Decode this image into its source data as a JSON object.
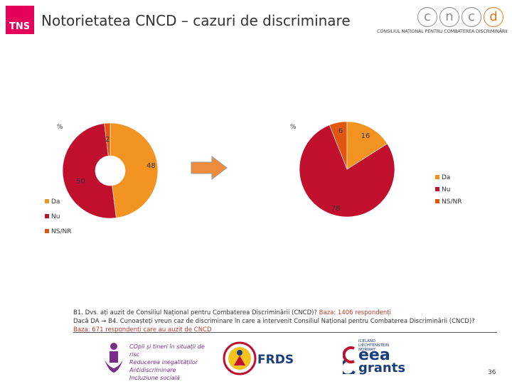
{
  "header": {
    "tns_logo": "TNS",
    "title": "Notorietatea CNCD – cazuri de discriminare",
    "cncd_letters": [
      "c",
      "n",
      "c",
      "d"
    ],
    "cncd_subtitle": "CONSILIUL NAȚIONAL PENTRU COMBATEREA DISCRIMINĂRII"
  },
  "colors": {
    "Da": "#F39422",
    "Nu": "#C0102E",
    "NS/NR": "#E2570F",
    "arrow": "#F08A3C"
  },
  "chart_data": [
    {
      "type": "pie",
      "variant": "donut",
      "unit_label": "%",
      "categories": [
        "Da",
        "Nu",
        "NS/NR"
      ],
      "values": [
        48,
        50,
        2
      ],
      "data_labels": [
        "48",
        "50",
        "2"
      ],
      "legend": [
        "Da",
        "Nu",
        "NS/NR"
      ],
      "legend_position": "bottom-left"
    },
    {
      "type": "pie",
      "unit_label": "%",
      "categories": [
        "Nu",
        "NS/NR",
        "Da"
      ],
      "values": [
        78,
        6,
        16
      ],
      "data_labels": [
        "78",
        "6",
        "16"
      ],
      "legend": [
        "Da",
        "Nu",
        "NS/NR"
      ],
      "legend_position": "right"
    }
  ],
  "question": {
    "line1_text": "B1. Dvs. ați auzit de Consiliul Național pentru Combaterea Discriminării (CNCD)?",
    "line1_base": "Baza: 1406 respondenți",
    "line2_text": "Dacă DA → B4. Cunoașteți vreun caz de discriminare în care a intervenit Consiliul Național pentru Combaterea Discriminării (CNCD)?",
    "line2_base": "Baza: 671 respondenți care au auzit de CNCD"
  },
  "footer": {
    "logo1_lines": [
      "COpii și tineri în situații de risc",
      "Reducerea inegalităților",
      "Antidiscriminare",
      "Incluziune socială"
    ],
    "logo2_text": "FRDS",
    "logo3_small": [
      "ICELAND",
      "LIECHTENSTEIN",
      "NORWAY"
    ],
    "logo3_eea": "eea",
    "logo3_grants": "grants",
    "page_number": "36"
  }
}
